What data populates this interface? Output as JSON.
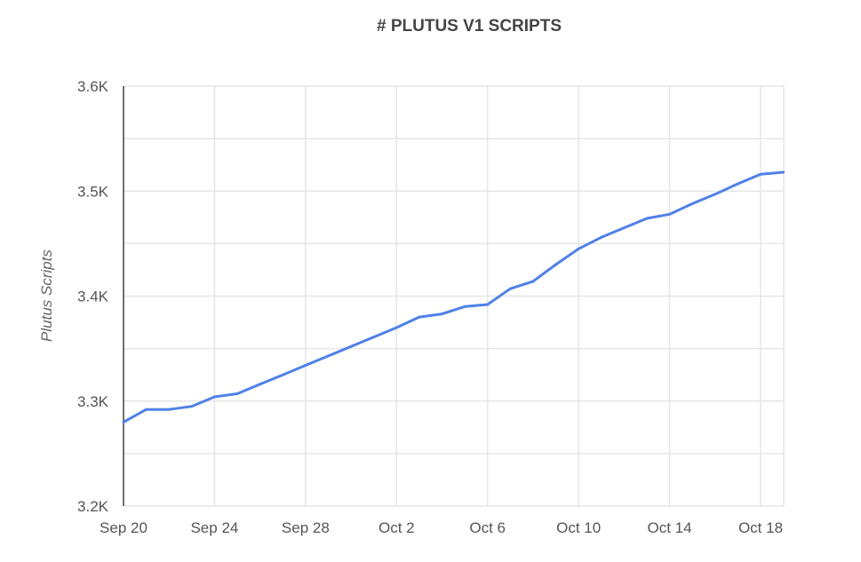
{
  "chart_data": {
    "type": "line",
    "title": "# PLUTUS V1 SCRIPTS",
    "xlabel": "",
    "ylabel": "Plutus Scripts",
    "x": [
      "Sep 20",
      "Sep 21",
      "Sep 22",
      "Sep 23",
      "Sep 24",
      "Sep 25",
      "Sep 26",
      "Sep 27",
      "Sep 28",
      "Sep 29",
      "Sep 30",
      "Oct 1",
      "Oct 2",
      "Oct 3",
      "Oct 4",
      "Oct 5",
      "Oct 6",
      "Oct 7",
      "Oct 8",
      "Oct 9",
      "Oct 10",
      "Oct 11",
      "Oct 12",
      "Oct 13",
      "Oct 14",
      "Oct 15",
      "Oct 16",
      "Oct 17",
      "Oct 18",
      "Oct 19"
    ],
    "series": [
      {
        "values": [
          3280,
          3292,
          3292,
          3295,
          3304,
          3307,
          3316,
          3325,
          3334,
          3343,
          3352,
          3361,
          3370,
          3380,
          3383,
          3390,
          3392,
          3407,
          3414,
          3430,
          3445,
          3456,
          3465,
          3474,
          3478,
          3488,
          3497,
          3507,
          3516,
          3518
        ]
      }
    ],
    "x_tick_labels": [
      "Sep 20",
      "Sep 24",
      "Sep 28",
      "Oct 2",
      "Oct 6",
      "Oct 10",
      "Oct 14",
      "Oct 18"
    ],
    "y_tick_values": [
      3200,
      3300,
      3400,
      3500,
      3600
    ],
    "y_tick_labels": [
      "3.2K",
      "3.3K",
      "3.4K",
      "3.5K",
      "3.6K"
    ],
    "ylim": [
      3200,
      3600
    ],
    "grid": true,
    "legend": "none",
    "line_color": "#4f81e8"
  }
}
